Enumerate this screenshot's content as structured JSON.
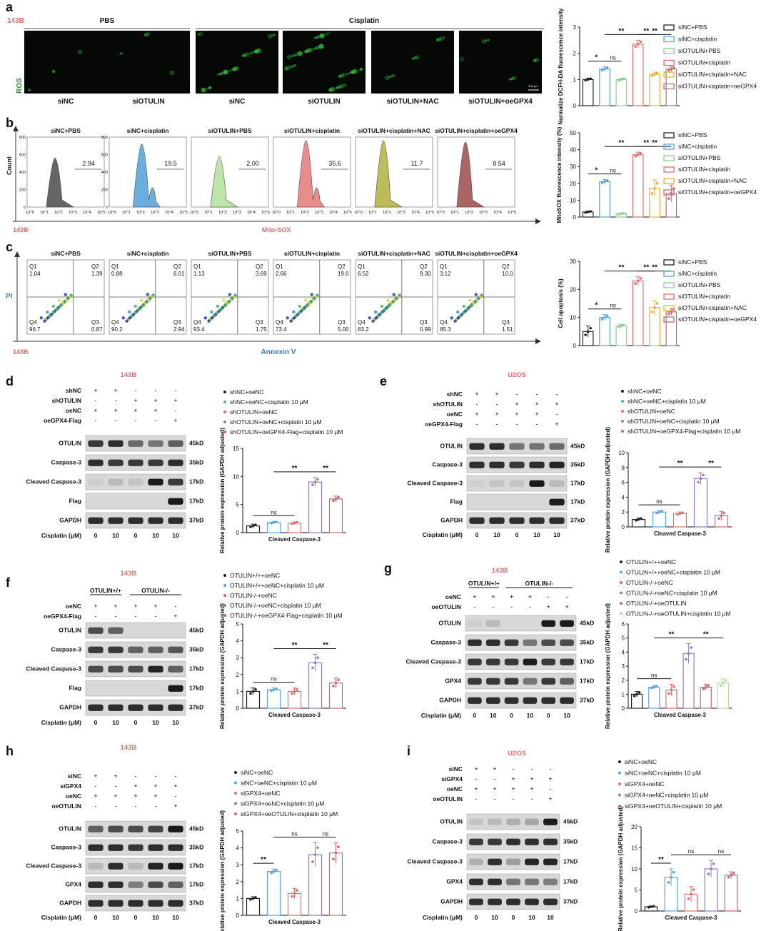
{
  "panels": {
    "a": {
      "letter": "a",
      "cell": "143B",
      "groups": [
        "PBS",
        "Cisplatin"
      ],
      "ylabel_side": "ROS",
      "images": [
        "siNC",
        "siOTULIN",
        "siNC",
        "siOTULIN",
        "siOTULIN+NAC",
        "siOTULIN+oeGPX4"
      ],
      "scalebar": "200 μm"
    },
    "b": {
      "letter": "b",
      "cell": "143B",
      "ylabel": "Count",
      "xlabel": "Mito-SOX",
      "titles": [
        "siNC+PBS",
        "siNC+cisplatin",
        "siOTULIN+PBS",
        "siOTULIN+cisplatin",
        "siOTULIN+cisplatin+NAC",
        "siOTULIN+cisplatin+oeGPX4"
      ],
      "values": [
        "2.94",
        "19.5",
        "2.00",
        "35.6",
        "11.7",
        "8.54"
      ],
      "xticks": [
        "10^0",
        "10^1",
        "10^2",
        "10^3",
        "10^4",
        "10^5"
      ],
      "yticks": [
        "0",
        "200",
        "400",
        "600",
        "800"
      ]
    },
    "c": {
      "letter": "c",
      "cell": "143B",
      "ylabel": "PI",
      "xlabel": "Annexin V",
      "titles": [
        "siNC+PBS",
        "siNC+cisplatin",
        "siOTULIN+PBS",
        "siOTULIN+cisplatin",
        "siOTULIN+cisplatin+NAC",
        "siOTULIN+cisplatin+oeGPX4"
      ],
      "quads": [
        {
          "q1": "1.04",
          "q2": "1.39",
          "q3": "0.87",
          "q4": "96.7"
        },
        {
          "q1": "0.88",
          "q2": "6.01",
          "q3": "2.94",
          "q4": "90.2"
        },
        {
          "q1": "1.13",
          "q2": "3.69",
          "q3": "1.75",
          "q4": "93.4"
        },
        {
          "q1": "2.66",
          "q2": "19.0",
          "q3": "5.00",
          "q4": "73.4"
        },
        {
          "q1": "6.52",
          "q2": "9.30",
          "q3": "0.99",
          "q4": "83.2"
        },
        {
          "q1": "3.12",
          "q2": "10.0",
          "q3": "1.51",
          "q4": "85.3"
        }
      ],
      "qlabels": [
        "Q1",
        "Q2",
        "Q3",
        "Q4"
      ]
    },
    "d": {
      "letter": "d",
      "cell": "143B",
      "rows": [
        {
          "label": "shNC",
          "vals": [
            "+",
            "+",
            "-",
            "-",
            "-"
          ]
        },
        {
          "label": "shOTULIN",
          "vals": [
            "-",
            "-",
            "+",
            "+",
            "+"
          ]
        },
        {
          "label": "oeNC",
          "vals": [
            "+",
            "+",
            "+",
            "+",
            "-"
          ]
        },
        {
          "label": "oeGPX4-Flag",
          "vals": [
            "-",
            "-",
            "-",
            "-",
            "+"
          ]
        }
      ],
      "bands": [
        {
          "label": "OTULIN",
          "kd": "45kD"
        },
        {
          "label": "Caspase-3",
          "kd": "35kD"
        },
        {
          "label": "Cleaved Caspase-3",
          "kd": "17kD"
        },
        {
          "label": "Flag",
          "kd": "17kD"
        },
        {
          "label": "GAPDH",
          "kd": "37kD"
        }
      ],
      "cis_label": "Cisplatin (μM)",
      "cis": [
        "0",
        "10",
        "0",
        "10",
        "10"
      ]
    },
    "e": {
      "letter": "e",
      "cell": "U2OS",
      "rows": [
        {
          "label": "shNC",
          "vals": [
            "+",
            "+",
            "-",
            "-",
            "-"
          ]
        },
        {
          "label": "shOTULIN",
          "vals": [
            "-",
            "-",
            "+",
            "+",
            "+"
          ]
        },
        {
          "label": "oeNC",
          "vals": [
            "+",
            "+",
            "+",
            "+",
            "-"
          ]
        },
        {
          "label": "oeGPX4-Flag",
          "vals": [
            "-",
            "-",
            "-",
            "-",
            "+"
          ]
        }
      ],
      "bands": [
        {
          "label": "OTULIN",
          "kd": "45kD"
        },
        {
          "label": "Caspase-3",
          "kd": "35kD"
        },
        {
          "label": "Cleaved Caspase-3",
          "kd": "17kD"
        },
        {
          "label": "Flag",
          "kd": "17kD"
        },
        {
          "label": "GAPDH",
          "kd": "37kD"
        }
      ],
      "cis_label": "Cisplatin (μM)",
      "cis": [
        "0",
        "10",
        "0",
        "10",
        "10"
      ]
    },
    "f": {
      "letter": "f",
      "cell": "143B",
      "groups": [
        "OTULIN+/+",
        "OTULIN-/-"
      ],
      "rows": [
        {
          "label": "oeNC",
          "vals": [
            "+",
            "+",
            "+",
            "+",
            "-"
          ]
        },
        {
          "label": "oeGPX4-Flag",
          "vals": [
            "-",
            "-",
            "-",
            "-",
            "+"
          ]
        }
      ],
      "bands": [
        {
          "label": "OTULIN",
          "kd": "45kD"
        },
        {
          "label": "Caspase-3",
          "kd": "35kD"
        },
        {
          "label": "Cleaved Caspase-3",
          "kd": "17kD"
        },
        {
          "label": "Flag",
          "kd": "17kD"
        },
        {
          "label": "GAPDH",
          "kd": "37kD"
        }
      ],
      "cis_label": "Cisplatin (μM)",
      "cis": [
        "0",
        "10",
        "0",
        "10",
        "10"
      ]
    },
    "g": {
      "letter": "g",
      "cell": "143B",
      "groups": [
        "OTULIN+/+",
        "OTULIN-/-"
      ],
      "rows": [
        {
          "label": "oeNC",
          "vals": [
            "+",
            "+",
            "+",
            "+",
            "-",
            "-"
          ]
        },
        {
          "label": "oeOTULIN",
          "vals": [
            "-",
            "-",
            "-",
            "-",
            "+",
            "+"
          ]
        }
      ],
      "bands": [
        {
          "label": "OTULIN",
          "kd": "45kD"
        },
        {
          "label": "Caspase-3",
          "kd": "35kD"
        },
        {
          "label": "Cleaved Caspase-3",
          "kd": "17kD"
        },
        {
          "label": "GPX4",
          "kd": "17kD"
        },
        {
          "label": "GAPDH",
          "kd": "37kD"
        }
      ],
      "cis_label": "Cisplatin (μM)",
      "cis": [
        "0",
        "10",
        "0",
        "10",
        "0",
        "10"
      ]
    },
    "h": {
      "letter": "h",
      "cell": "143B",
      "rows": [
        {
          "label": "siNC",
          "vals": [
            "+",
            "+",
            "-",
            "-",
            "-"
          ]
        },
        {
          "label": "siGPX4",
          "vals": [
            "-",
            "-",
            "+",
            "+",
            "+"
          ]
        },
        {
          "label": "oeNC",
          "vals": [
            "+",
            "+",
            "+",
            "+",
            "-"
          ]
        },
        {
          "label": "oeOTULIN",
          "vals": [
            "-",
            "-",
            "-",
            "-",
            "+"
          ]
        }
      ],
      "bands": [
        {
          "label": "OTULIN",
          "kd": "45kD"
        },
        {
          "label": "Caspase-3",
          "kd": "35kD"
        },
        {
          "label": "Cleaved Caspase-3",
          "kd": "17kD"
        },
        {
          "label": "GPX4",
          "kd": "17kD"
        },
        {
          "label": "GAPDH",
          "kd": "37kD"
        }
      ],
      "cis_label": "Cisplatin (μM)",
      "cis": [
        "0",
        "10",
        "0",
        "10",
        "10"
      ]
    },
    "i": {
      "letter": "i",
      "cell": "U2OS",
      "rows": [
        {
          "label": "siNC",
          "vals": [
            "+",
            "+",
            "-",
            "-",
            "-"
          ]
        },
        {
          "label": "siGPX4",
          "vals": [
            "-",
            "-",
            "+",
            "+",
            "+"
          ]
        },
        {
          "label": "oeNC",
          "vals": [
            "+",
            "+",
            "+",
            "+",
            "-"
          ]
        },
        {
          "label": "oeOTULIN",
          "vals": [
            "-",
            "-",
            "-",
            "-",
            "+"
          ]
        }
      ],
      "bands": [
        {
          "label": "OTULIN",
          "kd": "45kD"
        },
        {
          "label": "Caspase-3",
          "kd": "35kD"
        },
        {
          "label": "Cleaved Caspase-3",
          "kd": "17kD"
        },
        {
          "label": "GPX4",
          "kd": "17kD"
        },
        {
          "label": "GAPDH",
          "kd": "37kD"
        }
      ],
      "cis_label": "Cisplatin (μM)",
      "cis": [
        "0",
        "10",
        "0",
        "10",
        "10"
      ]
    }
  },
  "colors": {
    "black": "#222222",
    "blue": "#5aa5dc",
    "green": "#8fd08a",
    "red": "#e06f6f",
    "orange": "#e8b13a",
    "pink": "#c06c76",
    "light_green": "#b7dd9c",
    "violet": "#9a7bb6"
  },
  "chart_data": [
    {
      "id": "a",
      "type": "bar",
      "ylabel": "Normalize DCFH-DA fluorescence intensity",
      "ylim": [
        0,
        3
      ],
      "yticks": [
        0,
        1,
        2,
        3
      ],
      "legend": [
        "siNC+PBS",
        "siNC+cisplatin",
        "siOTULIN+PBS",
        "siOTULIN+cisplatin",
        "siOTULIN+cisplatin+NAC",
        "siOTULIN+cisplatin+oeGPX4"
      ],
      "values": [
        1.0,
        1.4,
        1.0,
        2.35,
        1.2,
        1.4
      ],
      "errors": [
        0.05,
        0.08,
        0.05,
        0.15,
        0.08,
        0.08
      ],
      "sig": [
        {
          "a": 0,
          "b": 1,
          "label": "*"
        },
        {
          "a": 1,
          "b": 2,
          "label": "ns"
        },
        {
          "a": 1,
          "b": 3,
          "label": "**"
        },
        {
          "a": 3,
          "b": 4,
          "label": "**"
        },
        {
          "a": 3,
          "b": 5,
          "label": "**"
        }
      ]
    },
    {
      "id": "b",
      "type": "bar",
      "ylabel": "MitoSOX fluorescence intensity (%)",
      "ylim": [
        0,
        50
      ],
      "yticks": [
        0,
        10,
        20,
        30,
        40,
        50
      ],
      "legend": [
        "siNC+PBS",
        "siNC+cisplatin",
        "siOTULIN+PBS",
        "siOTULIN+cisplatin",
        "siOTULIN+cisplatin+NAC",
        "siOTULIN+cisplatin+oeGPX4"
      ],
      "values": [
        3,
        21,
        2,
        37,
        17,
        14
      ],
      "errors": [
        0.6,
        1.2,
        0.4,
        1.5,
        5,
        5
      ],
      "sig": [
        {
          "a": 0,
          "b": 1,
          "label": "*"
        },
        {
          "a": 1,
          "b": 2,
          "label": "ns"
        },
        {
          "a": 1,
          "b": 3,
          "label": "**"
        },
        {
          "a": 3,
          "b": 4,
          "label": "**"
        },
        {
          "a": 3,
          "b": 5,
          "label": "**"
        }
      ]
    },
    {
      "id": "c",
      "type": "bar",
      "ylabel": "Cell apoptosis (%)",
      "ylim": [
        0,
        30
      ],
      "yticks": [
        0,
        10,
        20,
        30
      ],
      "legend": [
        "siNC+PBS",
        "siNC+cisplatin",
        "siOTULIN+PBS",
        "siOTULIN+cisplatin",
        "siOTULIN+cisplatin+NAC",
        "siOTULIN+cisplatin+oeGPX4"
      ],
      "values": [
        5,
        10,
        7,
        23,
        13.5,
        12
      ],
      "errors": [
        2,
        1,
        0.5,
        1.5,
        2.5,
        1.2
      ],
      "sig": [
        {
          "a": 0,
          "b": 1,
          "label": "*"
        },
        {
          "a": 1,
          "b": 2,
          "label": "ns"
        },
        {
          "a": 1,
          "b": 3,
          "label": "**"
        },
        {
          "a": 3,
          "b": 4,
          "label": "**"
        },
        {
          "a": 3,
          "b": 5,
          "label": "**"
        }
      ]
    },
    {
      "id": "d",
      "type": "bar",
      "ylabel": "Relative protein expression (GAPDH adjusted)",
      "xlabel": "Cleaved Caspase-3",
      "ylim": [
        0,
        15
      ],
      "yticks": [
        0,
        5,
        10,
        15
      ],
      "legend": [
        "shNC+oeNC",
        "shNC+oeNC+cisplatin 10 μM",
        "shOTULIN+oeNC",
        "shOTULIN+oeNC+cisplatin 10 μM",
        "shOTULIN+oeGPX4-Flag+cisplatin 10 μM"
      ],
      "values": [
        1.2,
        1.8,
        1.7,
        9.0,
        6.0
      ],
      "errors": [
        0.3,
        0.2,
        0.2,
        0.8,
        0.5
      ],
      "sig": [
        {
          "a": 0,
          "b": 2,
          "label": "ns"
        },
        {
          "a": 1,
          "b": 3,
          "label": "**"
        },
        {
          "a": 3,
          "b": 4,
          "label": "**"
        }
      ]
    },
    {
      "id": "e",
      "type": "bar",
      "ylabel": "Relative protein expression (GAPDH adjusted)",
      "xlabel": "Cleaved Caspase-3",
      "ylim": [
        0,
        10
      ],
      "yticks": [
        0,
        2,
        4,
        6,
        8,
        10
      ],
      "legend": [
        "shNC+oeNC",
        "shNC+oeNC+cisplatin 10 μM",
        "shOTULIN+oeNC",
        "shOTULIN+oeNC+cisplatin 10 μM",
        "shOTULIN+oeGPX4-Flag+cisplatin 10 μM"
      ],
      "values": [
        1.0,
        2.0,
        1.8,
        6.5,
        1.5
      ],
      "errors": [
        0.2,
        0.2,
        0.2,
        0.8,
        0.6
      ],
      "sig": [
        {
          "a": 0,
          "b": 2,
          "label": "ns"
        },
        {
          "a": 1,
          "b": 3,
          "label": "**"
        },
        {
          "a": 3,
          "b": 4,
          "label": "**"
        }
      ]
    },
    {
      "id": "f",
      "type": "bar",
      "ylabel": "Relative protein expression (GAPDH adjusted)",
      "xlabel": "Cleaved Caspase-3",
      "ylim": [
        0,
        5
      ],
      "yticks": [
        0,
        1,
        2,
        3,
        4,
        5
      ],
      "legend": [
        "OTULIN+/++oeNC",
        "OTULIN+/++oeNC+cisplatin 10 μM",
        "OTULIN-/-+oeNC",
        "OTULIN-/-+oeNC+cisplatin 10 μM",
        "OTULIN-/-+oeGPX4-Flag+cisplatin 10 μM"
      ],
      "values": [
        1.0,
        1.1,
        1.0,
        2.7,
        1.5
      ],
      "errors": [
        0.2,
        0.1,
        0.2,
        0.5,
        0.3
      ],
      "sig": [
        {
          "a": 0,
          "b": 2,
          "label": "ns"
        },
        {
          "a": 1,
          "b": 3,
          "label": "**"
        },
        {
          "a": 3,
          "b": 4,
          "label": "**"
        }
      ]
    },
    {
      "id": "g",
      "type": "bar",
      "ylabel": "Relative protein expression (GAPDH adjusted)",
      "xlabel": "Cleaved Caspase-3",
      "ylim": [
        0,
        6
      ],
      "yticks": [
        0,
        1,
        2,
        3,
        4,
        5,
        6
      ],
      "legend": [
        "OTULIN+/++oeNC",
        "OTULIN+/++oeNC+cisplatin 10 μM",
        "OTULIN-/-+oeNC",
        "OTULIN-/-+oeNC+cisplatin 10 μM",
        "OTULIN-/-+oeOTULIN",
        "OTULIN-/-+oeOTULIN+cisplatin 10 μM"
      ],
      "values": [
        1.0,
        1.5,
        1.3,
        3.9,
        1.5,
        1.8
      ],
      "errors": [
        0.2,
        0.1,
        0.4,
        0.7,
        0.2,
        0.3
      ],
      "sig": [
        {
          "a": 0,
          "b": 2,
          "label": "ns"
        },
        {
          "a": 1,
          "b": 3,
          "label": "**"
        },
        {
          "a": 3,
          "b": 5,
          "label": "**"
        }
      ]
    },
    {
      "id": "h",
      "type": "bar",
      "ylabel": "Relative protein expression (GAPDH adjusted)",
      "xlabel": "Cleaved Caspase-3",
      "ylim": [
        0,
        5
      ],
      "yticks": [
        0,
        1,
        2,
        3,
        4,
        5
      ],
      "legend": [
        "siNC+oeNC",
        "siNC+oeNC+cisplatin 10 μM",
        "siGPX4+oeNC",
        "siGPX4+oeNC+cisplatin 10 μM",
        "siGPX4+oeOTULIN+cisplatin 10 μM"
      ],
      "values": [
        1.0,
        2.6,
        1.3,
        3.6,
        3.7
      ],
      "errors": [
        0.1,
        0.15,
        0.3,
        0.7,
        0.6
      ],
      "sig": [
        {
          "a": 0,
          "b": 1,
          "label": "**"
        },
        {
          "a": 1,
          "b": 3,
          "label": "ns"
        },
        {
          "a": 3,
          "b": 4,
          "label": "ns"
        }
      ]
    },
    {
      "id": "i",
      "type": "bar",
      "ylabel": "Relative protein expression (GAPDH adjusted)",
      "xlabel": "Cleaved Caspase-3",
      "ylim": [
        0,
        20
      ],
      "yticks": [
        0,
        5,
        10,
        15,
        20
      ],
      "legend": [
        "siNC+oeNC",
        "siNC+oeNC+cisplatin 10 μM",
        "siGPX4+oeNC",
        "siGPX4+oeNC+cisplatin 10 μM",
        "siGPX4+oeOTULIN+cisplatin 10 μM"
      ],
      "values": [
        1.0,
        8.0,
        4.0,
        10.0,
        8.5
      ],
      "errors": [
        0.2,
        2.0,
        1.8,
        2.0,
        0.8
      ],
      "sig": [
        {
          "a": 0,
          "b": 1,
          "label": "**"
        },
        {
          "a": 1,
          "b": 3,
          "label": "ns"
        },
        {
          "a": 3,
          "b": 4,
          "label": "ns"
        }
      ]
    }
  ]
}
